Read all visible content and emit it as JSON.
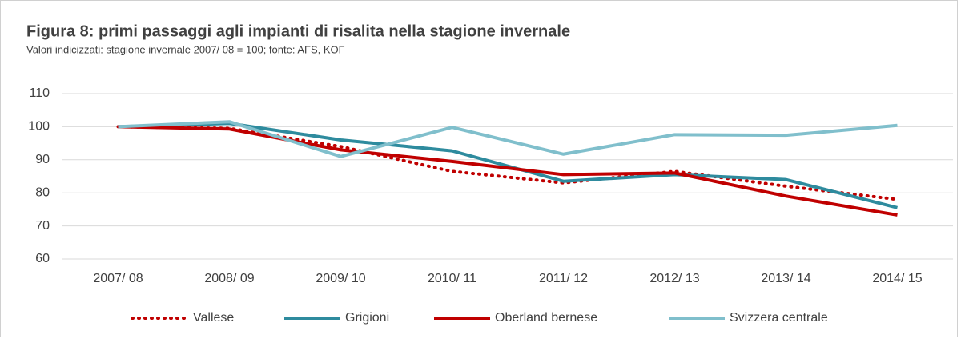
{
  "chart_data": {
    "type": "line",
    "title": "Figura 8: primi passaggi agli impianti di risalita nella stagione invernale",
    "subtitle": "Valori indicizzati: stagione invernale 2007/ 08 = 100; fonte: AFS, KOF",
    "categories": [
      "2007/ 08",
      "2008/ 09",
      "2009/ 10",
      "2010/ 11",
      "2011/ 12",
      "2012/ 13",
      "2013/ 14",
      "2014/ 15"
    ],
    "series": [
      {
        "name": "Vallese",
        "color": "#c00000",
        "dash": "dotted",
        "values": [
          100,
          99.5,
          94,
          86.5,
          83,
          86.5,
          82,
          78
        ]
      },
      {
        "name": "Grigioni",
        "color": "#2e8b9e",
        "values": [
          100,
          101,
          96,
          92.7,
          83.5,
          85.5,
          84,
          75.5
        ]
      },
      {
        "name": "Oberland bernese",
        "color": "#c00000",
        "values": [
          100,
          99.3,
          93,
          89.5,
          85.5,
          86,
          79,
          73.3
        ]
      },
      {
        "name": "Svizzera centrale",
        "color": "#80bfcc",
        "values": [
          100,
          101.5,
          91,
          99.8,
          91.7,
          97.6,
          97.4,
          100.4
        ]
      }
    ],
    "ylim": [
      60,
      110
    ],
    "yticks": [
      60,
      70,
      80,
      90,
      100,
      110
    ],
    "grid": true,
    "legend": "bottom"
  }
}
